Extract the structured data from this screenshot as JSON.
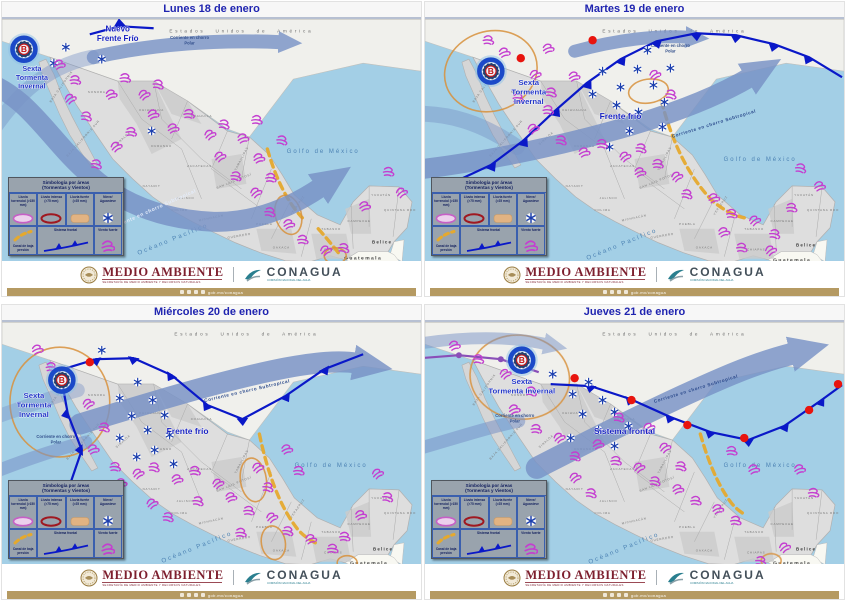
{
  "panels": [
    {
      "title": "Lunes 18 de enero",
      "storm_label": "Sexta Tormenta Invernal",
      "front_label": "Nuevo Frente Frío",
      "jet_polar_label": "Corriente en chorro Polar",
      "jet_subtropical_label": "Corriente en chorro Subtropical",
      "us_label": "Estados Unidos de América",
      "gulf_label": "Golfo de México",
      "ocean_label": "Océano Pacífico",
      "belize_label": "Belice",
      "guatemala_label": "Guatemala"
    },
    {
      "title": "Martes 19 de enero",
      "storm_label": "Sexta Tormenta Invernal",
      "front_label": "Frente frío",
      "jet_polar_label": "Corriente en chorro Polar",
      "jet_subtropical_label": "Corriente en chorro Subtropical",
      "us_label": "Estados Unidos de América",
      "gulf_label": "Golfo de México",
      "ocean_label": "Océano Pacífico",
      "belize_label": "Belice",
      "guatemala_label": "Guatemala"
    },
    {
      "title": "Miércoles 20 de enero",
      "storm_label": "Sexta Tormenta Invernal",
      "front_label": "Frente frío",
      "jet_polar_label": "Corriente en chorro Polar",
      "jet_subtropical_label": "Corriente en chorro Subtropical",
      "us_label": "Estados Unidos de América",
      "gulf_label": "Golfo de México",
      "ocean_label": "Océano Pacífico",
      "belize_label": "Belice",
      "guatemala_label": "Guatemala"
    },
    {
      "title": "Jueves 21 de enero",
      "storm_label": "Sexta Tormenta Invernal",
      "front_label": "Sistema frontal",
      "jet_polar_label": "Corriente en chorro Polar",
      "jet_subtropical_label": "Corriente en chorro Subtropical",
      "us_label": "Estados Unidos de América",
      "gulf_label": "Golfo de México",
      "ocean_label": "Océano Pacífico",
      "belize_label": "Belice",
      "guatemala_label": "Guatemala"
    }
  ],
  "map_states": [
    "SONORA",
    "CHIHUAHUA",
    "COAHUILA",
    "DURANGO",
    "SINALOA",
    "NAYARIT",
    "JALISCO",
    "COLIMA",
    "MICHOACÁN",
    "GUERRERO",
    "OAXACA",
    "CHIAPAS",
    "VERACRUZ",
    "PUEBLA",
    "TAMAULIPAS",
    "SAN LUIS POTOSÍ",
    "ZACATECAS",
    "YUCATÁN",
    "QUINTANA ROO",
    "CAMPECHE",
    "TABASCO",
    "BAJA CALIFORNIA",
    "BAJA CALIFORNIA SUR"
  ],
  "legend": {
    "title": "Simbología por áreas",
    "subtitle": "(Tormentas y Vientos)",
    "items": [
      {
        "id": "torrencial",
        "label": "Lluvia torrencial (>150 mm)"
      },
      {
        "id": "intensa",
        "label": "Lluvia intensa (>75 mm)"
      },
      {
        "id": "fuerte",
        "label": "Lluvia fuerte (>25 mm)"
      },
      {
        "id": "nieve",
        "label": "Nieve/ Aguanieve"
      },
      {
        "id": "canal",
        "label": "Canal de baja presión"
      },
      {
        "id": "frontal",
        "label": "Sistema frontal"
      },
      {
        "id": "viento",
        "label": "Viento fuerte"
      }
    ]
  },
  "footer": {
    "agency1": "MEDIO AMBIENTE",
    "agency1_sub": "SECRETARÍA DE MEDIO AMBIENTE Y RECURSOS NATURALES",
    "agency2": "CONAGUA",
    "agency2_sub": "COMISIÓN NACIONAL DEL AGUA",
    "bar_link": "gob.mx/conagua",
    "social_icons": [
      "facebook-icon",
      "twitter-icon",
      "instagram-icon",
      "youtube-icon"
    ]
  },
  "colors": {
    "ocean": "#a3cfe6",
    "land": "#dedede",
    "us_land": "#f0f0ec",
    "jet": "#7892c6",
    "cold_front": "#0a18c8",
    "warm_dot": "#e8140e",
    "occluded_front": "#8a4fb8",
    "wind": "#c43ed0",
    "snow": "#1c3fae",
    "low_channel": "#e5a92e",
    "rain_ring": "#d8913c",
    "storm_text": "#2438c8",
    "title_text": "#1f24b0",
    "gold_bar": "#b59a62",
    "brand_red": "#7d1f2e",
    "brand_teal": "#2a7f8f"
  }
}
